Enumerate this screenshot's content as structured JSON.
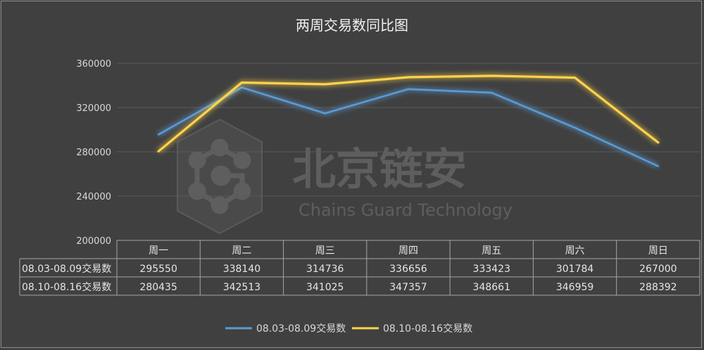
{
  "chart_data": {
    "type": "line",
    "title": "两周交易数同比图",
    "categories": [
      "周一",
      "周二",
      "周三",
      "周四",
      "周五",
      "周六",
      "周日"
    ],
    "series": [
      {
        "name": "08.03-08.09交易数",
        "values": [
          295550,
          338140,
          314736,
          336656,
          333423,
          301784,
          267000
        ],
        "color": "#5b9bd5"
      },
      {
        "name": "08.10-08.16交易数",
        "values": [
          280435,
          342513,
          341025,
          347357,
          348661,
          346959,
          288392
        ],
        "color": "#ffd34a"
      }
    ],
    "ylim": [
      200000,
      360000
    ],
    "yticks": [
      "360000",
      "320000",
      "280000",
      "240000",
      "200000"
    ],
    "legend_position": "bottom",
    "data_table": true,
    "gridlines": true
  },
  "watermark": {
    "logo_text": "北京链安",
    "sub_text": "Chains Guard Technology"
  }
}
